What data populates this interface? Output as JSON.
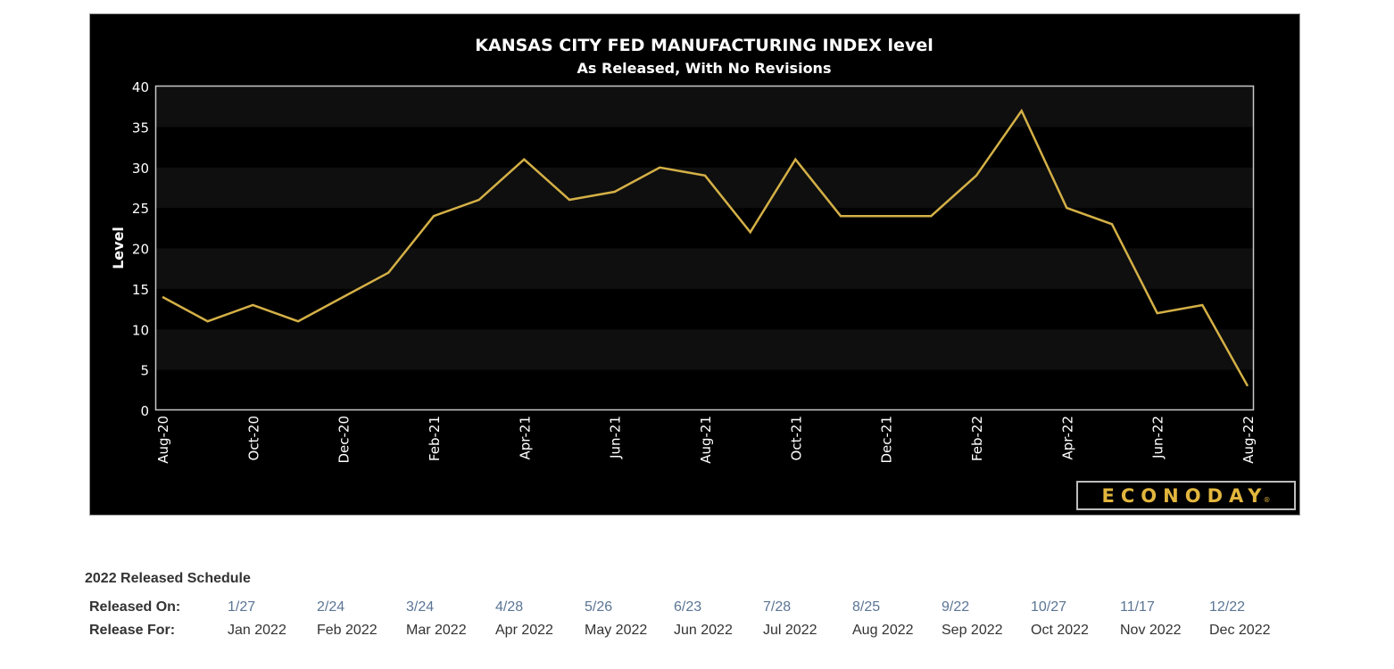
{
  "chart_data": {
    "type": "line",
    "title": "KANSAS CITY FED MANUFACTURING INDEX level",
    "subtitle": "As Released, With No Revisions",
    "xlabel": "",
    "ylabel": "Level",
    "ylim": [
      0,
      40
    ],
    "yticks": [
      0,
      5,
      10,
      15,
      20,
      25,
      30,
      35,
      40
    ],
    "grid": "alternating horizontal bands",
    "legend": "none",
    "x": [
      "Aug-20",
      "Sep-20",
      "Oct-20",
      "Nov-20",
      "Dec-20",
      "Jan-21",
      "Feb-21",
      "Mar-21",
      "Apr-21",
      "May-21",
      "Jun-21",
      "Jul-21",
      "Aug-21",
      "Sep-21",
      "Oct-21",
      "Nov-21",
      "Dec-21",
      "Jan-22",
      "Feb-22",
      "Mar-22",
      "Apr-22",
      "May-22",
      "Jun-22",
      "Jul-22",
      "Aug-22"
    ],
    "xtick_labels": [
      "Aug-20",
      "Oct-20",
      "Dec-20",
      "Feb-21",
      "Apr-21",
      "Jun-21",
      "Aug-21",
      "Oct-21",
      "Dec-21",
      "Feb-22",
      "Apr-22",
      "Jun-22",
      "Aug-22"
    ],
    "series": [
      {
        "name": "Level",
        "color": "#d4b046",
        "values": [
          14,
          11,
          13,
          11,
          14,
          17,
          24,
          26,
          31,
          26,
          27,
          30,
          29,
          22,
          31,
          24,
          24,
          24,
          29,
          37,
          25,
          23,
          12,
          13,
          3
        ]
      }
    ]
  },
  "colors": {
    "background": "#000000",
    "band": "#0f0f0f",
    "line": "#d4b046",
    "logo": "#e2b63e",
    "link": "#5b7594"
  },
  "logo": {
    "text": "ECONODAY",
    "mark": "®"
  },
  "schedule": {
    "title": "2022 Released Schedule",
    "released_on_label": "Released On:",
    "release_for_label": "Release For:",
    "entries": [
      {
        "date": "1/27",
        "month": "Jan 2022"
      },
      {
        "date": "2/24",
        "month": "Feb 2022"
      },
      {
        "date": "3/24",
        "month": "Mar 2022"
      },
      {
        "date": "4/28",
        "month": "Apr 2022"
      },
      {
        "date": "5/26",
        "month": "May 2022"
      },
      {
        "date": "6/23",
        "month": "Jun 2022"
      },
      {
        "date": "7/28",
        "month": "Jul 2022"
      },
      {
        "date": "8/25",
        "month": "Aug 2022"
      },
      {
        "date": "9/22",
        "month": "Sep 2022"
      },
      {
        "date": "10/27",
        "month": "Oct 2022"
      },
      {
        "date": "11/17",
        "month": "Nov 2022"
      },
      {
        "date": "12/22",
        "month": "Dec 2022"
      }
    ]
  }
}
